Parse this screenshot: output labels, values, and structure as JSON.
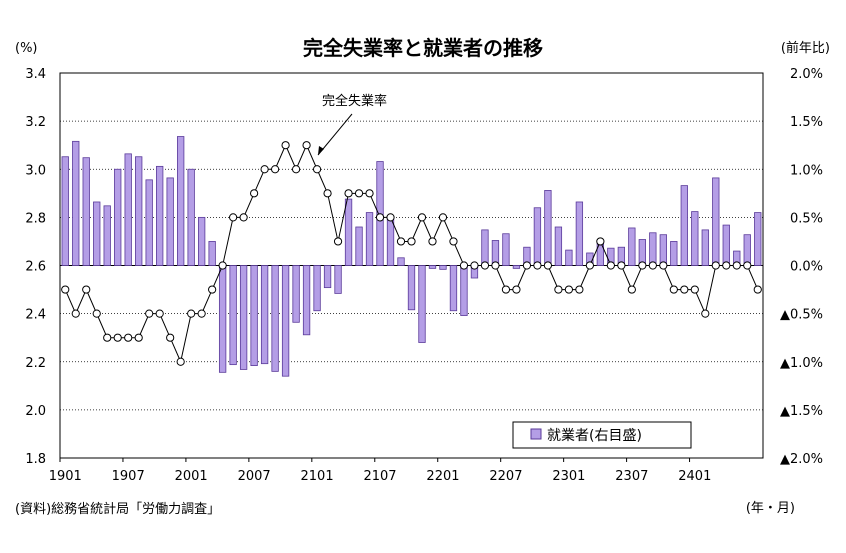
{
  "chart_data": {
    "type": "bar+line",
    "title": "完全失業率と就業者の推移",
    "left_unit": "(%)",
    "right_unit": "(前年比)",
    "x_unit": "(年・月)",
    "source": "(資料)総務省統計局「労働力調査」",
    "line_annotation": "完全失業率",
    "legend": "就業者(右目盛)",
    "left_axis": {
      "ylim": [
        1.8,
        3.4
      ],
      "ticks": [
        "3.4",
        "3.2",
        "3.0",
        "2.8",
        "2.6",
        "2.4",
        "2.2",
        "2.0",
        "1.8"
      ]
    },
    "right_axis": {
      "ylim": [
        -2.0,
        2.0
      ],
      "ticks": [
        "2.0%",
        "1.5%",
        "1.0%",
        "0.5%",
        "0.0%",
        "▲0.5%",
        "▲1.0%",
        "▲1.5%",
        "▲2.0%"
      ]
    },
    "x_tick_labels": [
      "1901",
      "1907",
      "2001",
      "2007",
      "2101",
      "2107",
      "2201",
      "2207",
      "2301",
      "2307",
      "2401"
    ],
    "x_tick_index": [
      0,
      6,
      12,
      18,
      24,
      30,
      36,
      42,
      48,
      54,
      60
    ],
    "series": [
      {
        "name": "就業者(右目盛)",
        "type": "bar",
        "axis": "right",
        "values": [
          1.13,
          1.29,
          1.12,
          0.66,
          0.62,
          1.0,
          1.16,
          1.13,
          0.89,
          1.03,
          0.91,
          1.34,
          1.0,
          0.5,
          0.25,
          -1.11,
          -1.03,
          -1.08,
          -1.04,
          -1.02,
          -1.1,
          -1.15,
          -0.59,
          -0.72,
          -0.47,
          -0.23,
          -0.29,
          0.69,
          0.4,
          0.55,
          1.08,
          0.5,
          0.08,
          -0.46,
          -0.8,
          -0.03,
          -0.04,
          -0.47,
          -0.52,
          -0.13,
          0.37,
          0.26,
          0.33,
          -0.03,
          0.19,
          0.6,
          0.78,
          0.4,
          0.16,
          0.66,
          0.13,
          0.23,
          0.18,
          0.19,
          0.39,
          0.27,
          0.34,
          0.32,
          0.25,
          0.83,
          0.56,
          0.37,
          0.91,
          0.42,
          0.15,
          0.32,
          0.55
        ]
      },
      {
        "name": "完全失業率",
        "type": "line",
        "axis": "left",
        "values": [
          2.5,
          2.4,
          2.5,
          2.4,
          2.3,
          2.3,
          2.3,
          2.3,
          2.4,
          2.4,
          2.3,
          2.2,
          2.4,
          2.4,
          2.5,
          2.6,
          2.8,
          2.8,
          2.9,
          3.0,
          3.0,
          3.1,
          3.0,
          3.1,
          3.0,
          2.9,
          2.7,
          2.9,
          2.9,
          2.9,
          2.8,
          2.8,
          2.7,
          2.7,
          2.8,
          2.7,
          2.8,
          2.7,
          2.6,
          2.6,
          2.6,
          2.6,
          2.5,
          2.5,
          2.6,
          2.6,
          2.6,
          2.5,
          2.5,
          2.5,
          2.6,
          2.7,
          2.6,
          2.6,
          2.5,
          2.6,
          2.6,
          2.6,
          2.5,
          2.5,
          2.5,
          2.4,
          2.6,
          2.6,
          2.6,
          2.6,
          2.5
        ]
      }
    ],
    "colors": {
      "bar_fill": "#b49ee6",
      "bar_stroke": "#5a3a9a",
      "line": "#000000",
      "grid": "#000000"
    }
  }
}
